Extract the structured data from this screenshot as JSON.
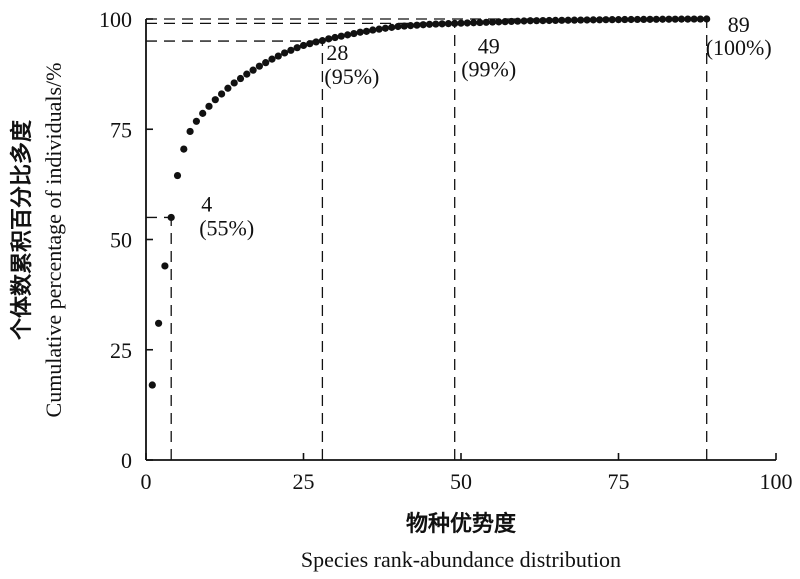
{
  "chart_data": {
    "type": "scatter",
    "xlabel_cn": "物种优势度",
    "xlabel_en": "Species rank-abundance distribution",
    "ylabel_cn": "个体数累积百分比多度",
    "ylabel_en": "Cumulative percentage of individuals/%",
    "xlim": [
      0,
      100
    ],
    "ylim": [
      0,
      100
    ],
    "x_ticks": [
      "0",
      "25",
      "50",
      "75",
      "100"
    ],
    "y_ticks": [
      "0",
      "25",
      "50",
      "75",
      "100"
    ],
    "grid": false,
    "x": [
      1,
      2,
      3,
      4,
      5,
      6,
      7,
      8,
      9,
      10,
      11,
      12,
      13,
      14,
      15,
      16,
      17,
      18,
      19,
      20,
      21,
      22,
      23,
      24,
      25,
      26,
      27,
      28,
      29,
      30,
      31,
      32,
      33,
      34,
      35,
      36,
      37,
      38,
      39,
      40,
      41,
      42,
      43,
      44,
      45,
      46,
      47,
      48,
      49,
      50,
      51,
      52,
      53,
      54,
      55,
      56,
      57,
      58,
      59,
      60,
      61,
      62,
      63,
      64,
      65,
      66,
      67,
      68,
      69,
      70,
      71,
      72,
      73,
      74,
      75,
      76,
      77,
      78,
      79,
      80,
      81,
      82,
      83,
      84,
      85,
      86,
      87,
      88,
      89
    ],
    "y": [
      17,
      31,
      44,
      55,
      64.5,
      70.5,
      74.5,
      76.8,
      78.6,
      80.2,
      81.7,
      83,
      84.3,
      85.5,
      86.5,
      87.5,
      88.4,
      89.3,
      90.1,
      90.9,
      91.6,
      92.3,
      92.9,
      93.5,
      94,
      94.4,
      94.8,
      95.1,
      95.5,
      95.8,
      96.1,
      96.4,
      96.7,
      97,
      97.2,
      97.5,
      97.7,
      97.9,
      98.1,
      98.3,
      98.4,
      98.5,
      98.6,
      98.7,
      98.8,
      98.85,
      98.9,
      98.95,
      99,
      99.05,
      99.1,
      99.15,
      99.2,
      99.25,
      99.3,
      99.35,
      99.4,
      99.45,
      99.5,
      99.55,
      99.6,
      99.62,
      99.64,
      99.66,
      99.68,
      99.7,
      99.72,
      99.74,
      99.76,
      99.78,
      99.8,
      99.82,
      99.84,
      99.85,
      99.86,
      99.88,
      99.89,
      99.9,
      99.91,
      99.92,
      99.93,
      99.94,
      99.95,
      99.96,
      99.97,
      99.98,
      99.99,
      99.99,
      100
    ],
    "reference_lines": [
      {
        "x": 4,
        "y": 55,
        "label_rank": "4",
        "label_pct": "(55%)"
      },
      {
        "x": 28,
        "y": 95,
        "label_rank": "28",
        "label_pct": "(95%)"
      },
      {
        "x": 49,
        "y": 99,
        "label_rank": "49",
        "label_pct": "(99%)"
      },
      {
        "x": 89,
        "y": 100,
        "label_rank": "89",
        "label_pct": "(100%)"
      }
    ]
  }
}
